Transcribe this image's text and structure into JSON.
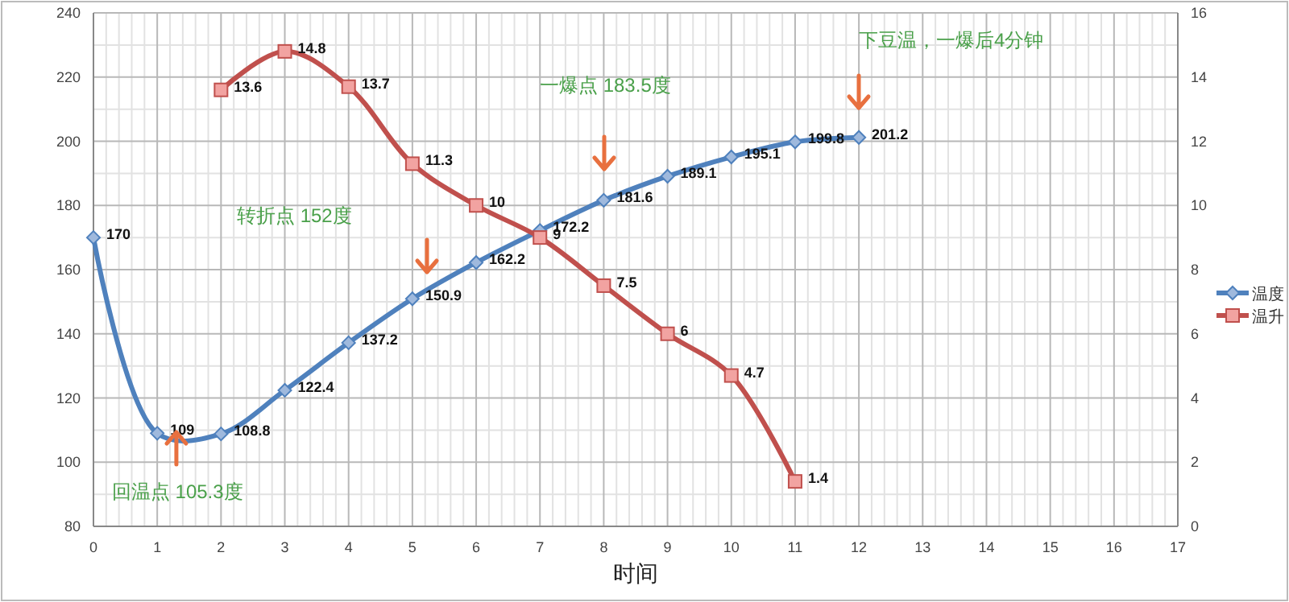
{
  "chart_data": {
    "type": "line",
    "xlabel": "时间",
    "x": [
      0,
      1,
      2,
      3,
      4,
      5,
      6,
      7,
      8,
      9,
      10,
      11,
      12
    ],
    "xlim": [
      0,
      17
    ],
    "xticks": [
      0,
      1,
      2,
      3,
      4,
      5,
      6,
      7,
      8,
      9,
      10,
      11,
      12,
      13,
      14,
      15,
      16,
      17
    ],
    "ylim": [
      80,
      240
    ],
    "yticks": [
      80,
      100,
      120,
      140,
      160,
      180,
      200,
      220,
      240
    ],
    "y2lim": [
      0,
      16
    ],
    "y2ticks": [
      0,
      2,
      4,
      6,
      8,
      10,
      12,
      14,
      16
    ],
    "series": [
      {
        "name": "温度",
        "color": "#4f81bd",
        "marker": "diamond",
        "values": [
          170,
          109,
          108.8,
          122.4,
          137.2,
          150.9,
          162.2,
          172.2,
          181.6,
          189.1,
          195.1,
          199.8,
          201.2
        ]
      },
      {
        "name": "温升",
        "color": "#c0504d",
        "marker": "square",
        "axis": "y2",
        "values": [
          null,
          null,
          13.6,
          14.8,
          13.7,
          11.3,
          10,
          9,
          7.5,
          6,
          4.7,
          1.4,
          null
        ]
      }
    ],
    "data_labels": true,
    "grid": true,
    "legend": "right",
    "line_style": "solid",
    "annotations": [
      {
        "text": "回温点 105.3度",
        "x": 1.3,
        "y": 105.3
      },
      "转折点 152度",
      "一爆点 183.5度",
      "下豆温，一爆后4分钟"
    ]
  }
}
